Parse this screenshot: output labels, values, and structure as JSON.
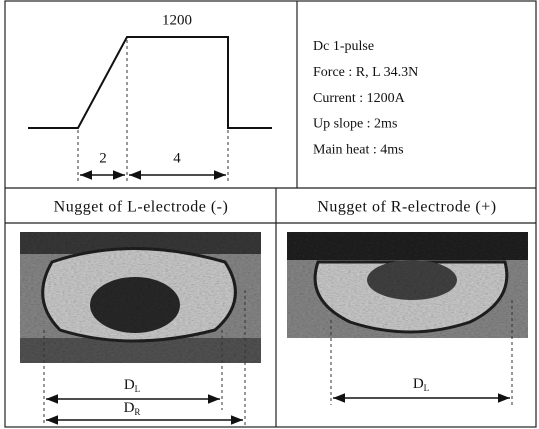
{
  "waveform": {
    "peak_label": "1200",
    "upslope_label": "2",
    "main_label": "4"
  },
  "conditions": [
    "Dc 1-pulse",
    "Force : R, L 34.3N",
    "Current : 1200A",
    "Up slope : 2ms",
    "Main heat : 4ms"
  ],
  "headers": [
    "Nugget of L-electrode (-)",
    "Nugget of R-electrode (+)"
  ],
  "dimensions": {
    "left_inner": {
      "main": "D",
      "sub": "L"
    },
    "left_outer": {
      "main": "D",
      "sub": "R"
    },
    "right": {
      "main": "D",
      "sub": "L"
    }
  }
}
